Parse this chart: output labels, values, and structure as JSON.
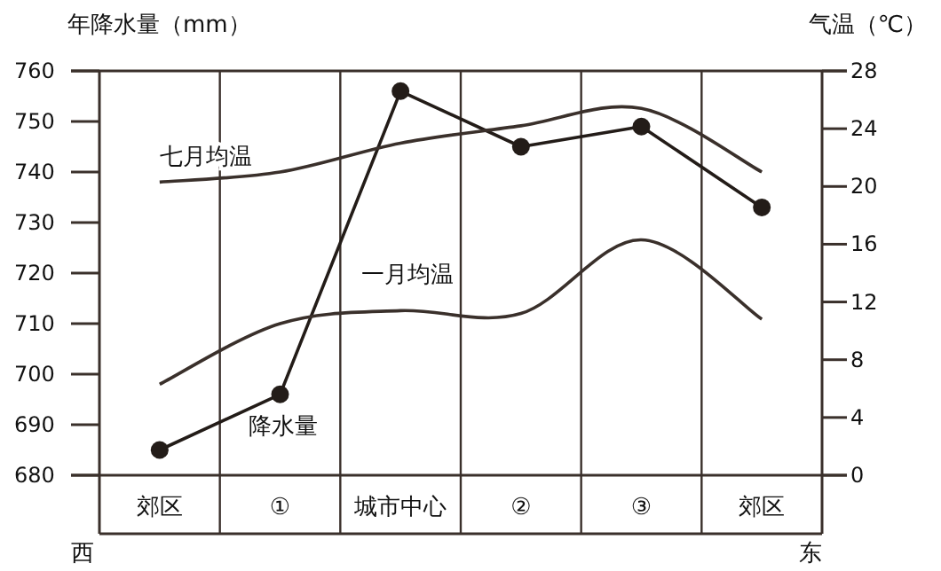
{
  "chart_data": {
    "type": "line",
    "ylabel": "年降水量（mm）",
    "y2label": "气温（℃）",
    "categories": [
      "郊区",
      "①",
      "城市中心",
      "②",
      "③",
      "郊区"
    ],
    "series": [
      {
        "name": "降水量",
        "color": "#231c18",
        "values": [
          685,
          696,
          756,
          745,
          749,
          733
        ],
        "marker": "circle"
      },
      {
        "name": "七月均温",
        "color": "#3a302b",
        "values": [
          20.3,
          21,
          23,
          24.2,
          25.4,
          21
        ],
        "axis": "y2",
        "marker": "none"
      },
      {
        "name": "一月均温",
        "color": "#3a302b",
        "values": [
          6.3,
          10.5,
          11.4,
          11.2,
          16.3,
          10.8
        ],
        "axis": "y2",
        "marker": "none"
      }
    ],
    "ylim": [
      680,
      760
    ],
    "yticks": [
      680,
      690,
      700,
      710,
      720,
      730,
      740,
      750,
      760
    ],
    "y2lim": [
      0,
      28
    ],
    "y2ticks": [
      0,
      4,
      8,
      12,
      16,
      20,
      24,
      28
    ],
    "legend": false,
    "grid": false,
    "annotations": [
      "西",
      "东"
    ]
  }
}
